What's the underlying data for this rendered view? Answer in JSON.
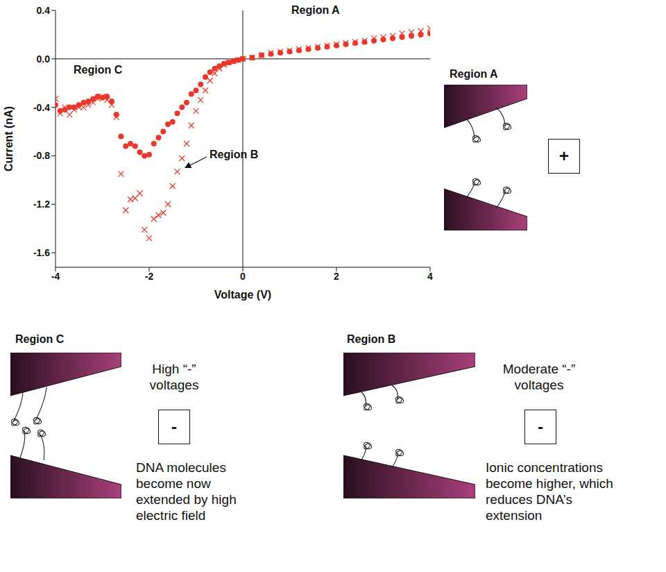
{
  "chart_data": {
    "type": "scatter",
    "x_label": "Voltage (V)",
    "y_label": "Current (nA)",
    "annotations": [
      "Region A",
      "Region B",
      "Region C"
    ],
    "xlim": [
      -4,
      4
    ],
    "xticks": [
      -4,
      -2,
      0,
      2,
      4
    ],
    "ylim": [
      -1.72,
      0.4
    ],
    "yticks": [
      0.4,
      {
        "value": 0,
        "label": "0.0"
      },
      -0.4,
      -0.8,
      -1.2,
      -1.6
    ],
    "grid": false,
    "series": [
      {
        "color": "#e8372c",
        "marker": "circle",
        "x": [
          -4,
          -3.9,
          -3.8,
          -3.7,
          -3.6,
          -3.5,
          -3.4,
          -3.3,
          -3.2,
          -3.1,
          -3,
          -2.9,
          -2.8,
          -2.7,
          -2.6,
          -2.5,
          -2.4,
          -2.3,
          -2.2,
          -2.1,
          -2,
          -1.9,
          -1.8,
          -1.7,
          -1.6,
          -1.5,
          -1.4,
          -1.3,
          -1.2,
          -1.1,
          -1,
          -0.9,
          -0.8,
          -0.7,
          -0.6,
          -0.5,
          -0.4,
          -0.3,
          -0.2,
          -0.1,
          0,
          0.2,
          0.4,
          0.6,
          0.8,
          1,
          1.2,
          1.4,
          1.6,
          1.8,
          2,
          2.2,
          2.4,
          2.6,
          2.8,
          3,
          3.2,
          3.4,
          3.6,
          3.8,
          4
        ],
        "values": [
          -0.38,
          -0.43,
          -0.42,
          -0.4,
          -0.4,
          -0.38,
          -0.36,
          -0.35,
          -0.33,
          -0.31,
          -0.32,
          -0.31,
          -0.35,
          -0.46,
          -0.64,
          -0.72,
          -0.7,
          -0.72,
          -0.77,
          -0.8,
          -0.79,
          -0.7,
          -0.65,
          -0.6,
          -0.54,
          -0.52,
          -0.45,
          -0.4,
          -0.36,
          -0.29,
          -0.26,
          -0.21,
          -0.15,
          -0.11,
          -0.08,
          -0.06,
          -0.04,
          -0.03,
          -0.02,
          -0.01,
          0,
          0.01,
          0.03,
          0.04,
          0.05,
          0.06,
          0.07,
          0.08,
          0.09,
          0.1,
          0.11,
          0.12,
          0.13,
          0.14,
          0.15,
          0.16,
          0.17,
          0.18,
          0.19,
          0.2,
          0.21
        ]
      },
      {
        "color": "#e8372c",
        "marker": "x",
        "x": [
          -4,
          -3.9,
          -3.8,
          -3.7,
          -3.6,
          -3.5,
          -3.4,
          -3.3,
          -3.2,
          -3.1,
          -3,
          -2.9,
          -2.8,
          -2.7,
          -2.6,
          -2.5,
          -2.4,
          -2.3,
          -2.2,
          -2.1,
          -2,
          -1.9,
          -1.8,
          -1.7,
          -1.6,
          -1.5,
          -1.4,
          -1.3,
          -1.2,
          -1.1,
          -1,
          -0.9,
          -0.8,
          -0.7,
          -0.6,
          -0.5,
          -0.4,
          -0.3,
          -0.2,
          -0.1,
          0,
          0.2,
          0.4,
          0.6,
          0.8,
          1,
          1.2,
          1.4,
          1.6,
          1.8,
          2,
          2.2,
          2.4,
          2.6,
          2.8,
          3,
          3.2,
          3.4,
          3.6,
          3.8,
          4
        ],
        "values": [
          -0.33,
          -0.45,
          -0.4,
          -0.46,
          -0.42,
          -0.4,
          -0.4,
          -0.38,
          -0.36,
          -0.33,
          -0.31,
          -0.34,
          -0.38,
          -0.48,
          -0.95,
          -1.25,
          -1.16,
          -1.15,
          -1.11,
          -1.41,
          -1.48,
          -1.32,
          -1.29,
          -1.27,
          -1.2,
          -1.05,
          -0.93,
          -0.82,
          -0.7,
          -0.55,
          -0.43,
          -0.34,
          -0.26,
          -0.18,
          -0.12,
          -0.08,
          -0.05,
          -0.03,
          -0.02,
          -0.01,
          0,
          0.01,
          0.03,
          0.05,
          0.06,
          0.07,
          0.08,
          0.09,
          0.1,
          0.11,
          0.12,
          0.13,
          0.14,
          0.15,
          0.17,
          0.18,
          0.19,
          0.21,
          0.22,
          0.23,
          0.25
        ]
      }
    ]
  },
  "diagrams": [
    {
      "label": "Region A",
      "sign": "+"
    },
    {
      "label": "Region C",
      "heading": "High “-” voltages",
      "sign": "-",
      "caption": "DNA molecules become now extended by high electric field"
    },
    {
      "label": "Region B",
      "heading": "Moderate “-” voltages",
      "sign": "-",
      "caption": "Ionic concentrations become higher, which reduces DNA’s extension"
    }
  ]
}
